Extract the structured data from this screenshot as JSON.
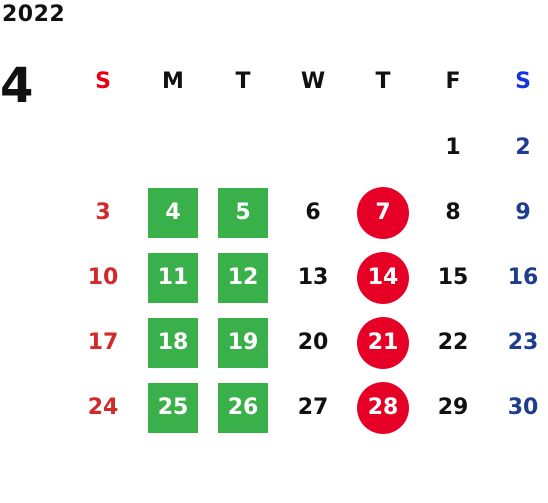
{
  "calendar": {
    "year": "2022",
    "month": "4",
    "weekdays": [
      "S",
      "M",
      "T",
      "W",
      "T",
      "F",
      "S"
    ],
    "weeks": [
      [
        "",
        "",
        "",
        "",
        "",
        "1",
        "2"
      ],
      [
        "3",
        "4",
        "5",
        "6",
        "7",
        "8",
        "9"
      ],
      [
        "10",
        "11",
        "12",
        "13",
        "14",
        "15",
        "16"
      ],
      [
        "17",
        "18",
        "19",
        "20",
        "21",
        "22",
        "23"
      ],
      [
        "24",
        "25",
        "26",
        "27",
        "28",
        "29",
        "30"
      ]
    ]
  },
  "colors": {
    "sunday": "#d22a2a",
    "saturday": "#1e3d8f",
    "green_highlight": "#3ab04a",
    "red_highlight": "#e60026"
  }
}
